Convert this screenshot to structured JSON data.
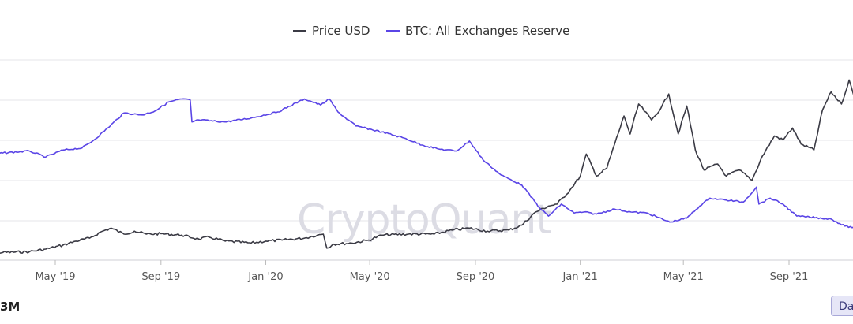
{
  "chart_data": {
    "type": "line",
    "title": "",
    "xlabel": "",
    "ylabel": "",
    "x_ticks": [
      "May '19",
      "Sep '19",
      "Jan '20",
      "May '20",
      "Sep '20",
      "Jan '21",
      "May '21",
      "Sep '21"
    ],
    "x_range": [
      "2019-02",
      "2021-12"
    ],
    "y_range_relative": [
      0,
      100
    ],
    "grid": "horizontal",
    "legend_position": "top-center",
    "series": [
      {
        "name": "Price USD",
        "color": "#3b3b45",
        "points": [
          [
            "2019-02-01",
            3.5
          ],
          [
            "2019-03-01",
            3.8
          ],
          [
            "2019-04-01",
            4.2
          ],
          [
            "2019-04-20",
            5.5
          ],
          [
            "2019-05-10",
            7.5
          ],
          [
            "2019-05-25",
            9.5
          ],
          [
            "2019-06-10",
            11
          ],
          [
            "2019-06-25",
            14.5
          ],
          [
            "2019-07-05",
            16
          ],
          [
            "2019-07-20",
            13
          ],
          [
            "2019-08-01",
            14.5
          ],
          [
            "2019-08-15",
            13
          ],
          [
            "2019-09-01",
            13.2
          ],
          [
            "2019-09-25",
            12.5
          ],
          [
            "2019-10-15",
            10.5
          ],
          [
            "2019-10-27",
            11.5
          ],
          [
            "2019-11-15",
            9.5
          ],
          [
            "2019-12-15",
            8.5
          ],
          [
            "2020-01-01",
            9.5
          ],
          [
            "2020-01-20",
            10
          ],
          [
            "2020-02-15",
            11
          ],
          [
            "2020-03-01",
            12.5
          ],
          [
            "2020-03-08",
            13
          ],
          [
            "2020-03-12",
            6
          ],
          [
            "2020-03-20",
            8
          ],
          [
            "2020-04-10",
            8.5
          ],
          [
            "2020-04-30",
            10
          ],
          [
            "2020-05-15",
            12.5
          ],
          [
            "2020-06-15",
            13
          ],
          [
            "2020-07-15",
            13
          ],
          [
            "2020-08-05",
            15
          ],
          [
            "2020-08-25",
            16
          ],
          [
            "2020-09-15",
            14.5
          ],
          [
            "2020-10-10",
            15
          ],
          [
            "2020-10-25",
            17.5
          ],
          [
            "2020-11-10",
            24
          ],
          [
            "2020-11-25",
            27
          ],
          [
            "2020-12-05",
            28
          ],
          [
            "2020-12-20",
            35
          ],
          [
            "2021-01-01",
            42
          ],
          [
            "2021-01-08",
            53
          ],
          [
            "2021-01-20",
            42
          ],
          [
            "2021-02-01",
            46
          ],
          [
            "2021-02-10",
            58
          ],
          [
            "2021-02-21",
            72
          ],
          [
            "2021-02-28",
            63
          ],
          [
            "2021-03-10",
            78
          ],
          [
            "2021-03-25",
            70
          ],
          [
            "2021-04-05",
            76
          ],
          [
            "2021-04-14",
            83
          ],
          [
            "2021-04-25",
            63
          ],
          [
            "2021-05-05",
            77
          ],
          [
            "2021-05-15",
            55
          ],
          [
            "2021-05-25",
            45
          ],
          [
            "2021-06-10",
            48
          ],
          [
            "2021-06-20",
            42
          ],
          [
            "2021-07-05",
            45
          ],
          [
            "2021-07-20",
            40
          ],
          [
            "2021-08-01",
            52
          ],
          [
            "2021-08-15",
            62
          ],
          [
            "2021-08-25",
            60
          ],
          [
            "2021-09-05",
            66
          ],
          [
            "2021-09-15",
            58
          ],
          [
            "2021-09-30",
            55
          ],
          [
            "2021-10-10",
            75
          ],
          [
            "2021-10-20",
            84
          ],
          [
            "2021-11-01",
            78
          ],
          [
            "2021-11-10",
            90
          ],
          [
            "2021-11-20",
            75
          ],
          [
            "2021-12-01",
            73
          ]
        ]
      },
      {
        "name": "BTC: All Exchanges Reserve",
        "color": "#5a45e6",
        "points": [
          [
            "2019-02-01",
            53
          ],
          [
            "2019-03-01",
            53.5
          ],
          [
            "2019-04-01",
            54.5
          ],
          [
            "2019-04-20",
            51.5
          ],
          [
            "2019-05-10",
            55
          ],
          [
            "2019-06-01",
            56
          ],
          [
            "2019-06-15",
            60
          ],
          [
            "2019-07-01",
            66
          ],
          [
            "2019-07-20",
            73.5
          ],
          [
            "2019-08-10",
            72.5
          ],
          [
            "2019-08-25",
            74.5
          ],
          [
            "2019-09-10",
            79
          ],
          [
            "2019-09-25",
            80.5
          ],
          [
            "2019-10-05",
            80
          ],
          [
            "2019-10-07",
            69
          ],
          [
            "2019-10-15",
            70
          ],
          [
            "2019-11-15",
            69
          ],
          [
            "2019-12-15",
            71
          ],
          [
            "2020-01-15",
            74
          ],
          [
            "2020-02-15",
            80.5
          ],
          [
            "2020-03-05",
            77.5
          ],
          [
            "2020-03-15",
            80.5
          ],
          [
            "2020-03-25",
            74
          ],
          [
            "2020-04-15",
            67
          ],
          [
            "2020-05-15",
            64
          ],
          [
            "2020-06-10",
            61
          ],
          [
            "2020-07-01",
            57.5
          ],
          [
            "2020-07-20",
            55.5
          ],
          [
            "2020-08-10",
            54.5
          ],
          [
            "2020-08-25",
            59.5
          ],
          [
            "2020-09-10",
            50
          ],
          [
            "2020-10-01",
            42.5
          ],
          [
            "2020-10-25",
            37.5
          ],
          [
            "2020-11-15",
            26
          ],
          [
            "2020-11-25",
            22
          ],
          [
            "2020-12-10",
            28
          ],
          [
            "2020-12-25",
            23.5
          ],
          [
            "2021-01-05",
            24
          ],
          [
            "2021-01-20",
            23
          ],
          [
            "2021-02-10",
            25.5
          ],
          [
            "2021-03-01",
            24
          ],
          [
            "2021-03-20",
            23.5
          ],
          [
            "2021-04-15",
            19
          ],
          [
            "2021-05-05",
            21
          ],
          [
            "2021-05-20",
            27
          ],
          [
            "2021-06-01",
            31
          ],
          [
            "2021-06-20",
            30
          ],
          [
            "2021-07-10",
            29
          ],
          [
            "2021-07-25",
            36.5
          ],
          [
            "2021-07-28",
            28
          ],
          [
            "2021-08-10",
            31
          ],
          [
            "2021-08-25",
            28
          ],
          [
            "2021-09-10",
            22
          ],
          [
            "2021-09-25",
            21.5
          ],
          [
            "2021-10-20",
            20.5
          ],
          [
            "2021-11-05",
            17
          ],
          [
            "2021-11-20",
            16
          ],
          [
            "2021-12-01",
            16
          ]
        ]
      }
    ],
    "watermark": "CryptoQuant"
  },
  "controls": {
    "range_label": "3M",
    "period_button": "Day"
  }
}
